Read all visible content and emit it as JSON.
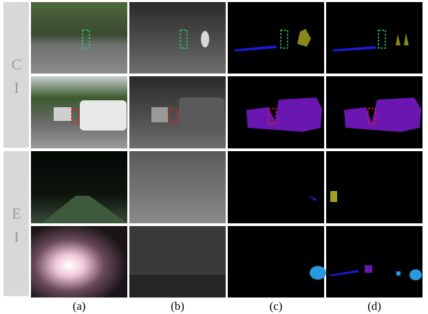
{
  "row_groups": [
    {
      "label_lines": [
        "C",
        "I"
      ]
    },
    {
      "label_lines": [
        "E",
        "I"
      ]
    }
  ],
  "column_labels": [
    "(a)",
    "(b)",
    "(c)",
    "(d)"
  ]
}
